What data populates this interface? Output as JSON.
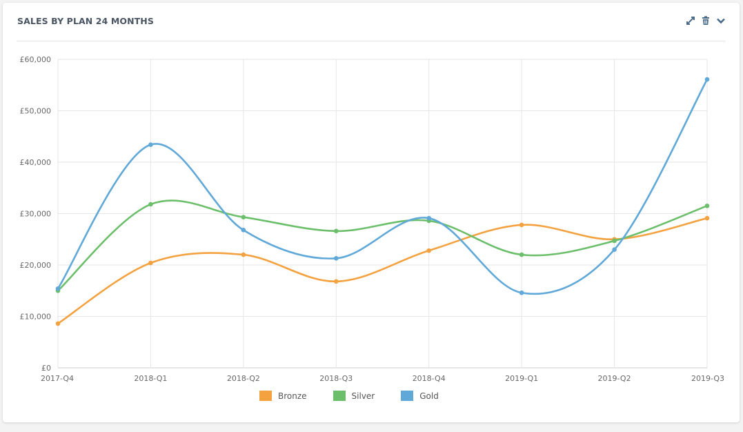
{
  "widget": {
    "title": "SALES BY PLAN 24 MONTHS",
    "icons": [
      "expand-icon",
      "trash-icon",
      "chevron-down-icon"
    ]
  },
  "chart_data": {
    "type": "line",
    "title": "SALES BY PLAN 24 MONTHS",
    "categories": [
      "2017-Q4",
      "2018-Q1",
      "2018-Q2",
      "2018-Q3",
      "2018-Q4",
      "2019-Q1",
      "2019-Q2",
      "2019-Q3"
    ],
    "ylim": [
      0,
      60000
    ],
    "yticks": [
      0,
      10000,
      20000,
      30000,
      40000,
      50000,
      60000
    ],
    "ytick_labels": [
      "£0",
      "£10,000",
      "£20,000",
      "£30,000",
      "£40,000",
      "£50,000",
      "£60,000"
    ],
    "grid": true,
    "legend": "bottom",
    "smooth": true,
    "series": [
      {
        "name": "Bronze",
        "color": "#f4a240",
        "values": [
          8600,
          20400,
          22000,
          16800,
          22800,
          27800,
          25000,
          29100
        ]
      },
      {
        "name": "Silver",
        "color": "#6cbf6a",
        "values": [
          15000,
          31800,
          29300,
          26600,
          28600,
          22000,
          24700,
          31500
        ]
      },
      {
        "name": "Gold",
        "color": "#5fa8d8",
        "values": [
          15400,
          43400,
          26800,
          21300,
          29100,
          14600,
          23000,
          56100
        ]
      }
    ]
  }
}
